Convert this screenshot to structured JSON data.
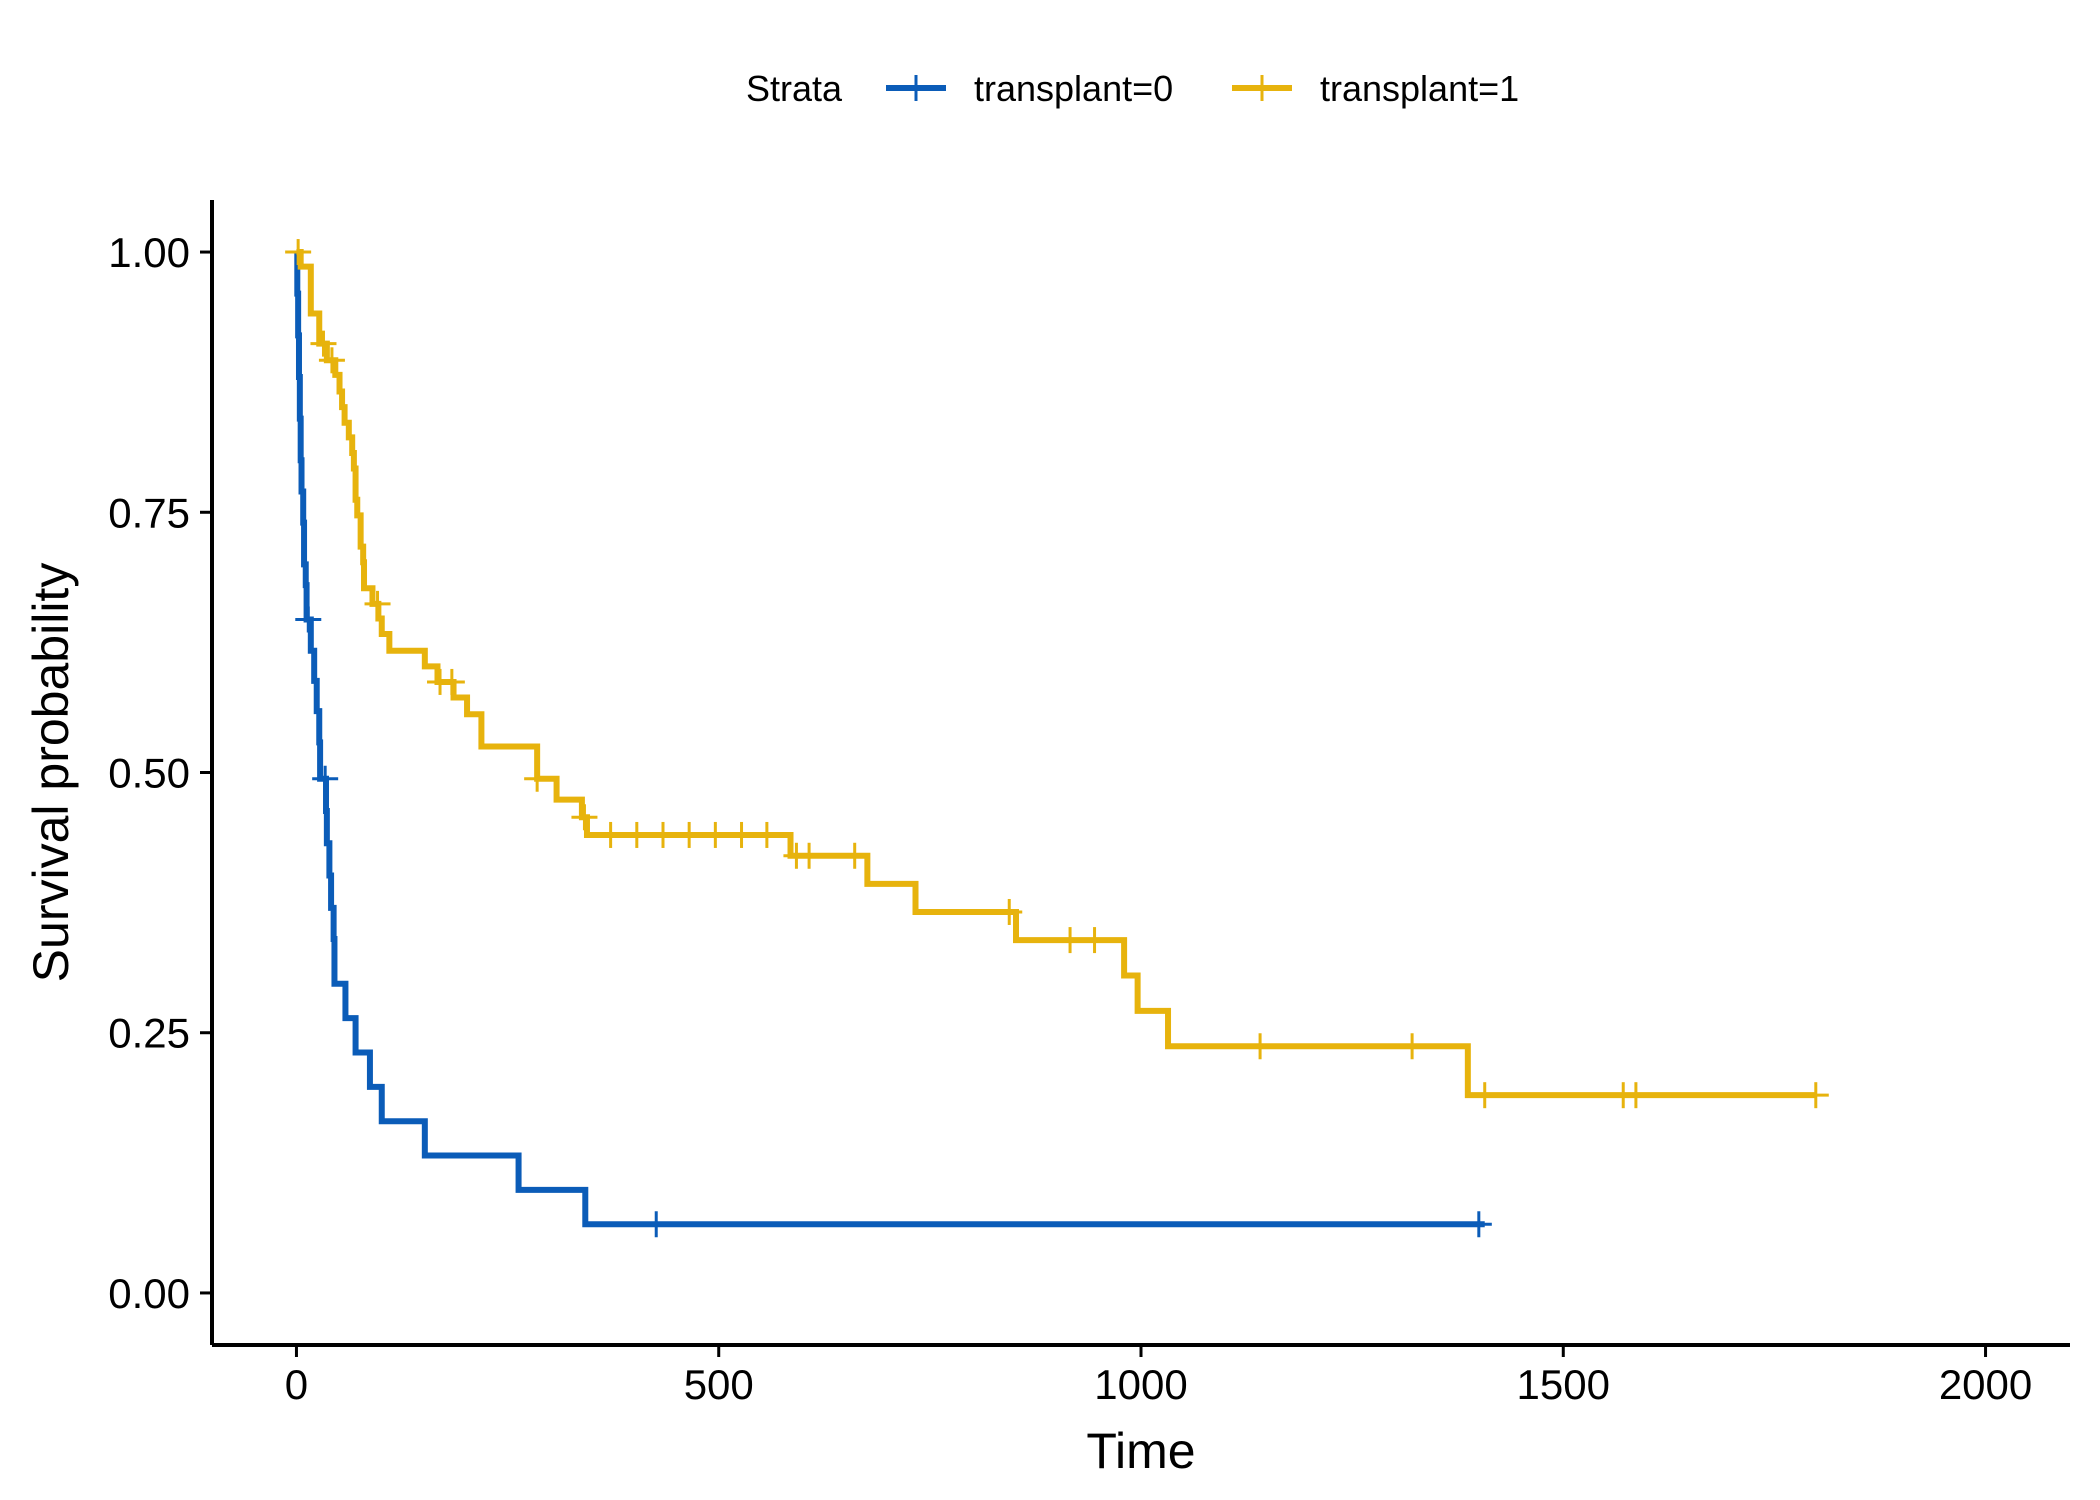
{
  "chart_data": {
    "type": "line",
    "title": "",
    "xlabel": "Time",
    "ylabel": "Survival probability",
    "xlim": [
      -100,
      2100
    ],
    "ylim": [
      -0.05,
      1.05
    ],
    "x_ticks": [
      0,
      500,
      1000,
      1500,
      2000
    ],
    "x_tick_labels": [
      "0",
      "500",
      "1000",
      "1500",
      "2000"
    ],
    "y_ticks": [
      0,
      0.25,
      0.5,
      0.75,
      1.0
    ],
    "y_tick_labels": [
      "0.00",
      "0.25",
      "0.50",
      "0.75",
      "1.00"
    ],
    "grid": false,
    "legend": {
      "title": "Strata",
      "position": "top"
    },
    "series": [
      {
        "name": "transplant=0",
        "color": "#0B5CB8",
        "step_points": [
          [
            0,
            1.0
          ],
          [
            1,
            0.96
          ],
          [
            2,
            0.92
          ],
          [
            3,
            0.88
          ],
          [
            4,
            0.84
          ],
          [
            5,
            0.8
          ],
          [
            6,
            0.77
          ],
          [
            8,
            0.74
          ],
          [
            9,
            0.7
          ],
          [
            11,
            0.68
          ],
          [
            12,
            0.647
          ],
          [
            17,
            0.617
          ],
          [
            21,
            0.588
          ],
          [
            24,
            0.559
          ],
          [
            27,
            0.529
          ],
          [
            28,
            0.494
          ],
          [
            35,
            0.463
          ],
          [
            36,
            0.432
          ],
          [
            39,
            0.401
          ],
          [
            41,
            0.37
          ],
          [
            44,
            0.34
          ],
          [
            45,
            0.297
          ],
          [
            58,
            0.264
          ],
          [
            70,
            0.231
          ],
          [
            87,
            0.198
          ],
          [
            101,
            0.165
          ],
          [
            152,
            0.132
          ],
          [
            263,
            0.099
          ],
          [
            342,
            0.066
          ],
          [
            1407,
            0.066
          ]
        ],
        "censor_times": [
          14,
          34,
          426,
          1400
        ]
      },
      {
        "name": "transplant=1",
        "color": "#E7B30D",
        "step_points": [
          [
            0,
            1.0
          ],
          [
            5,
            0.986
          ],
          [
            17,
            0.941
          ],
          [
            27,
            0.912
          ],
          [
            36,
            0.896
          ],
          [
            46,
            0.882
          ],
          [
            51,
            0.866
          ],
          [
            54,
            0.851
          ],
          [
            57,
            0.836
          ],
          [
            62,
            0.822
          ],
          [
            66,
            0.807
          ],
          [
            68,
            0.792
          ],
          [
            70,
            0.762
          ],
          [
            72,
            0.747
          ],
          [
            76,
            0.717
          ],
          [
            79,
            0.702
          ],
          [
            80,
            0.677
          ],
          [
            90,
            0.662
          ],
          [
            97,
            0.648
          ],
          [
            101,
            0.633
          ],
          [
            110,
            0.617
          ],
          [
            152,
            0.602
          ],
          [
            167,
            0.587
          ],
          [
            186,
            0.572
          ],
          [
            202,
            0.556
          ],
          [
            219,
            0.525
          ],
          [
            285,
            0.494
          ],
          [
            308,
            0.474
          ],
          [
            338,
            0.457
          ],
          [
            344,
            0.44
          ],
          [
            585,
            0.42
          ],
          [
            676,
            0.393
          ],
          [
            733,
            0.366
          ],
          [
            852,
            0.339
          ],
          [
            980,
            0.305
          ],
          [
            996,
            0.271
          ],
          [
            1032,
            0.237
          ],
          [
            1387,
            0.19
          ],
          [
            1799,
            0.19
          ]
        ],
        "censor_times": [
          2,
          32,
          42,
          96,
          170,
          184,
          285,
          341,
          372,
          403,
          434,
          465,
          496,
          527,
          557,
          592,
          607,
          661,
          844,
          916,
          945,
          1141,
          1321,
          1407,
          1571,
          1586,
          1799
        ]
      }
    ]
  }
}
